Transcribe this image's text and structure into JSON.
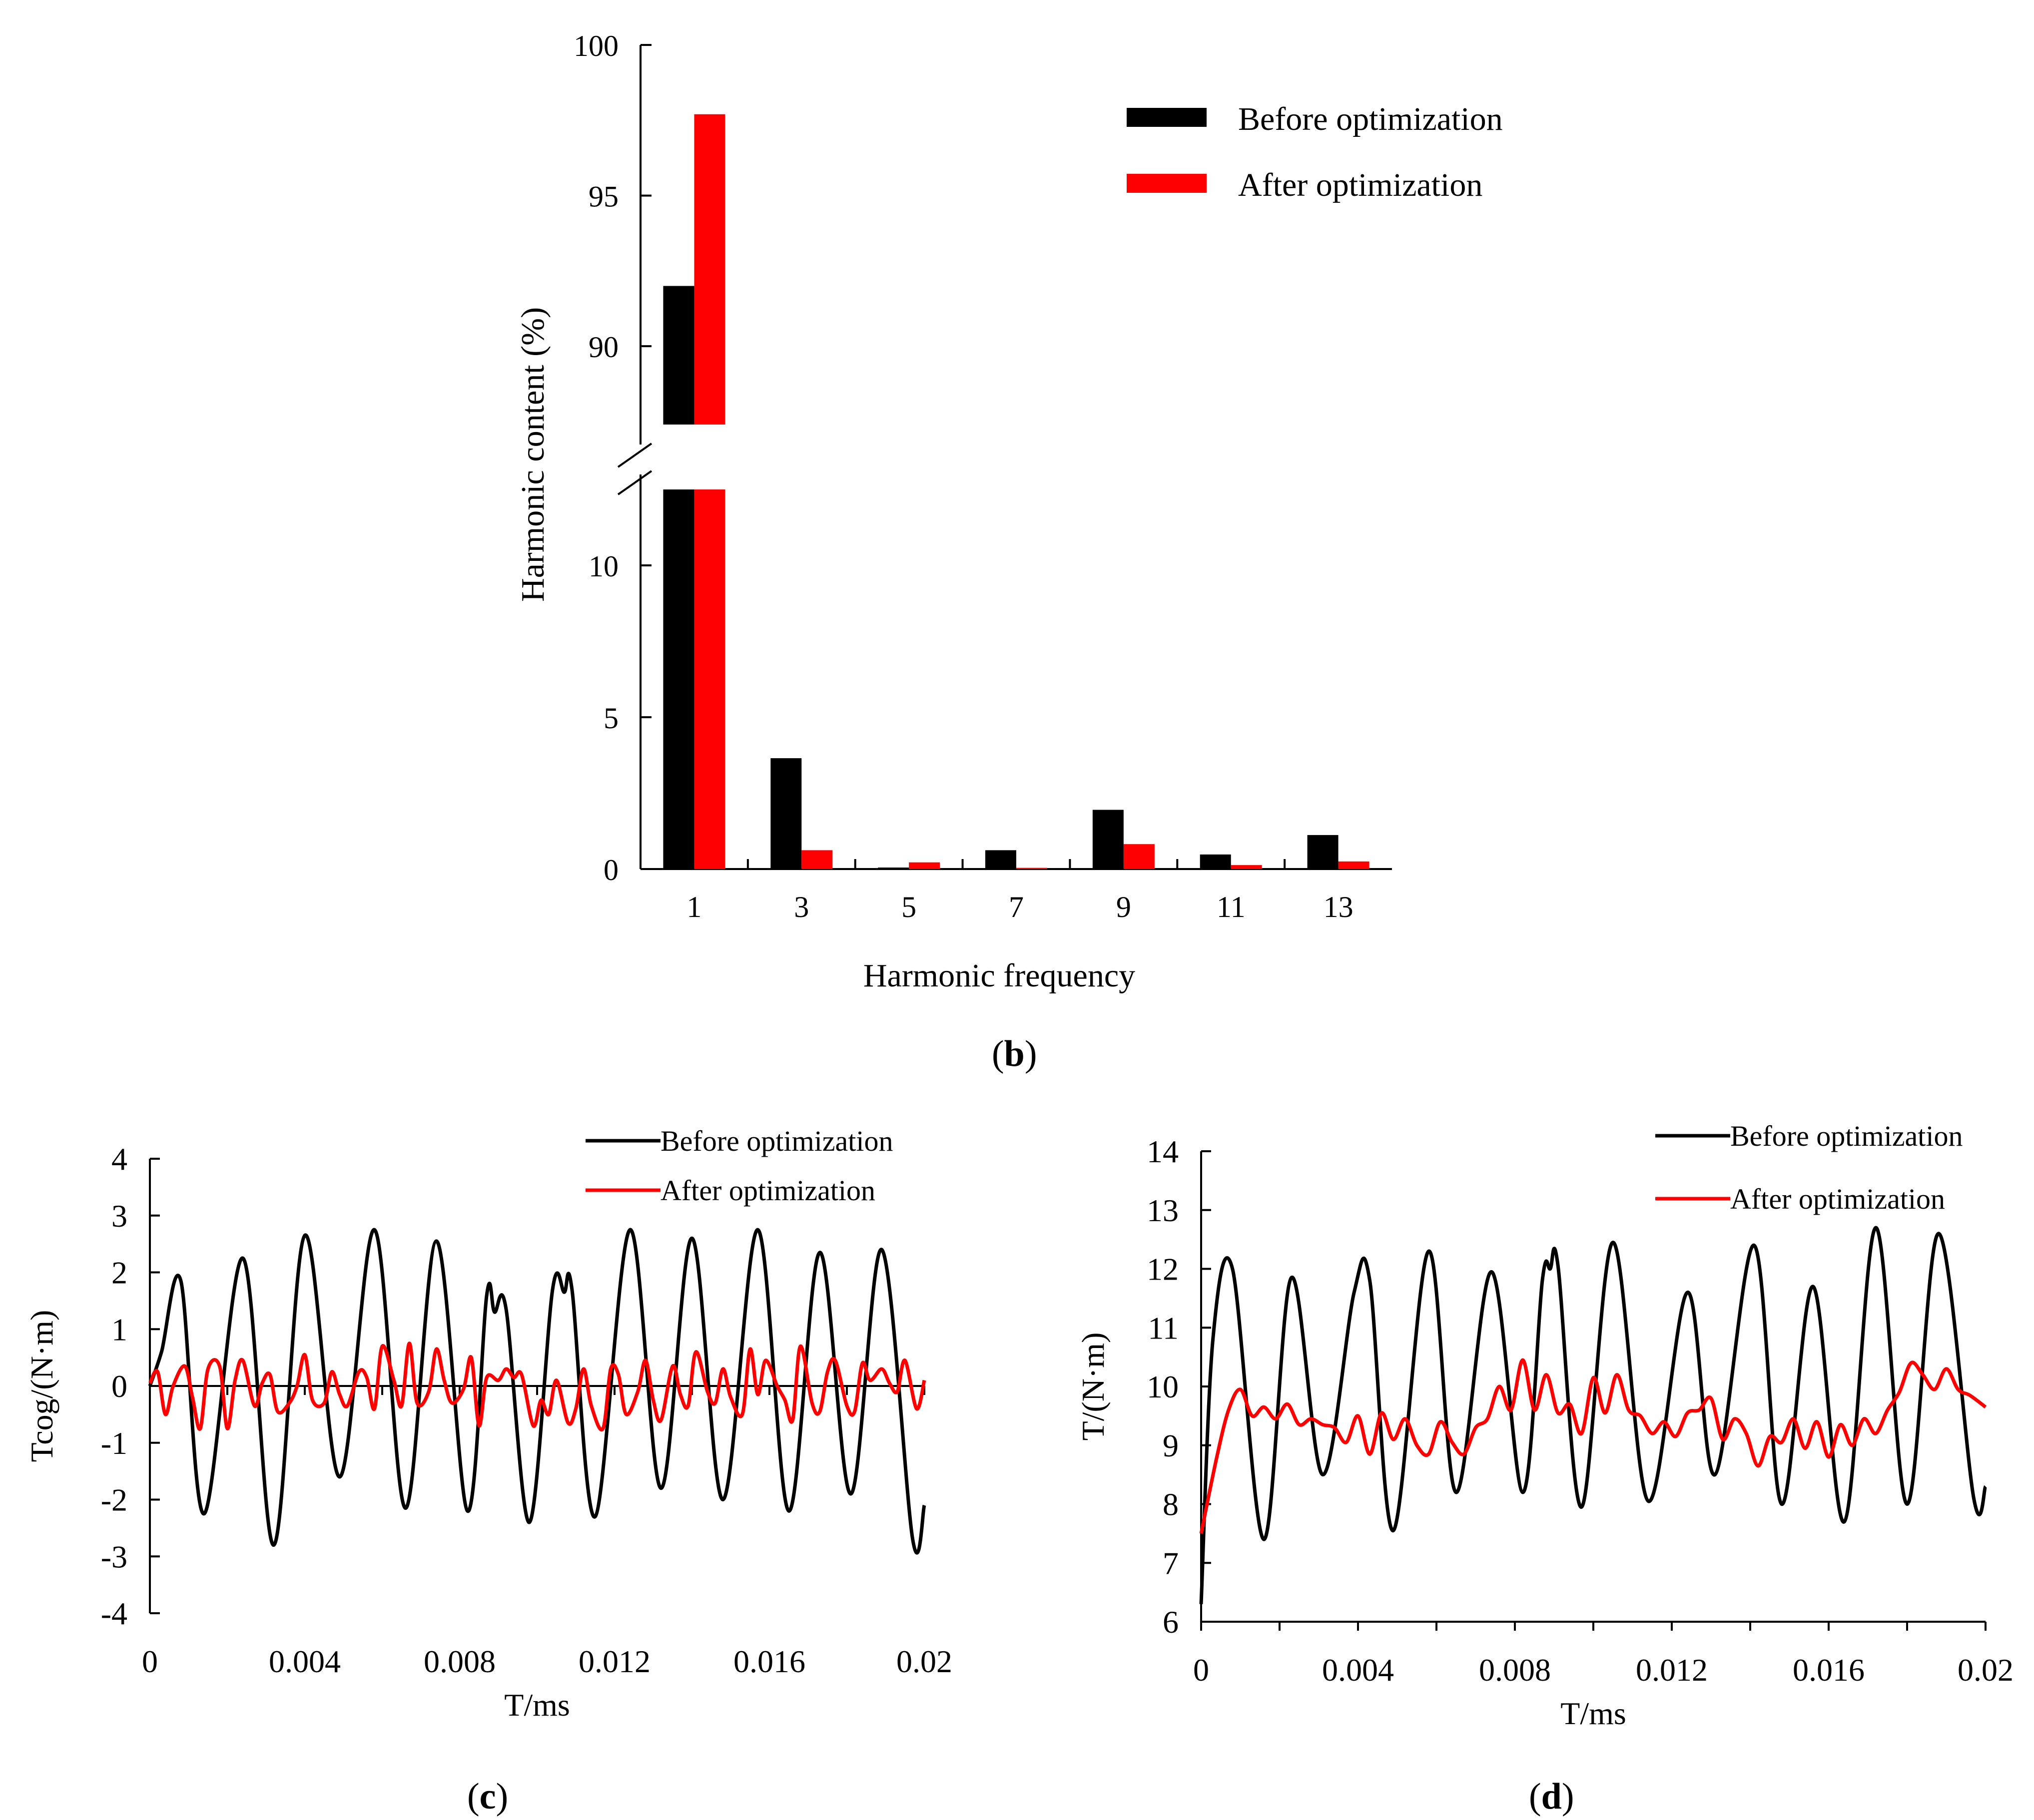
{
  "colors": {
    "before": "#000000",
    "after": "#ff0000"
  },
  "chart_data": [
    {
      "id": "b",
      "type": "bar",
      "caption_letter": "b",
      "xlabel": "Harmonic frequency",
      "ylabel": "Harmonic content (%)",
      "categories": [
        "1",
        "3",
        "5",
        "7",
        "9",
        "11",
        "13"
      ],
      "series": [
        {
          "name": "Before optimization",
          "color": "#000000",
          "values": [
            92.0,
            3.65,
            0.05,
            0.62,
            1.95,
            0.48,
            1.12
          ]
        },
        {
          "name": "After optimization",
          "color": "#ff0000",
          "values": [
            97.7,
            0.62,
            0.22,
            0.04,
            0.82,
            0.13,
            0.25
          ]
        }
      ],
      "axis_break": {
        "lower_range": [
          0,
          12.5
        ],
        "upper_range": [
          87.4,
          100
        ]
      },
      "yticks_lower": [
        0,
        5,
        10
      ],
      "yticks_upper": [
        90,
        95,
        100
      ],
      "legend": {
        "position": "top-right",
        "entries": [
          "Before optimization",
          "After optimization"
        ]
      }
    },
    {
      "id": "c",
      "type": "line",
      "caption_letter": "c",
      "xlabel": "T/ms",
      "ylabel": "Tcog/(N·m)",
      "xlim": [
        0,
        0.02
      ],
      "ylim": [
        -4,
        4
      ],
      "xticks": [
        "0",
        "0.004",
        "0.008",
        "0.012",
        "0.016",
        "0.02"
      ],
      "yticks": [
        "-4",
        "-3",
        "-2",
        "-1",
        "0",
        "1",
        "2",
        "3",
        "4"
      ],
      "legend": {
        "position": "top-right",
        "entries": [
          "Before optimization",
          "After optimization"
        ]
      },
      "series": [
        {
          "name": "Before optimization",
          "color": "#000000",
          "x": [
            0,
            0.0003,
            0.0008,
            0.0014,
            0.0024,
            0.0032,
            0.004,
            0.0049,
            0.0058,
            0.0066,
            0.0074,
            0.0082,
            0.0087,
            0.0089,
            0.0092,
            0.0098,
            0.0104,
            0.0107,
            0.0109,
            0.0115,
            0.0124,
            0.0132,
            0.014,
            0.0148,
            0.0157,
            0.0165,
            0.0173,
            0.0181,
            0.0189,
            0.0197,
            0.02
          ],
          "y": [
            0.0,
            0.6,
            1.85,
            -2.25,
            2.25,
            -2.8,
            2.65,
            -1.6,
            2.75,
            -2.15,
            2.55,
            -2.2,
            1.6,
            1.3,
            1.35,
            -2.4,
            1.7,
            1.65,
            1.7,
            -2.3,
            2.75,
            -1.8,
            2.6,
            -2.0,
            2.75,
            -2.2,
            2.35,
            -1.9,
            2.4,
            -2.7,
            -2.1
          ]
        },
        {
          "name": "After optimization",
          "color": "#ff0000",
          "x": [
            0,
            0.0002,
            0.0004,
            0.0006,
            0.0009,
            0.0011,
            0.0013,
            0.0015,
            0.0018,
            0.002,
            0.0022,
            0.0024,
            0.0027,
            0.0029,
            0.0031,
            0.0033,
            0.0036,
            0.0038,
            0.004,
            0.0042,
            0.0045,
            0.0047,
            0.0049,
            0.0051,
            0.0054,
            0.0056,
            0.0058,
            0.006,
            0.0063,
            0.0065,
            0.0067,
            0.0069,
            0.0072,
            0.0074,
            0.0076,
            0.0078,
            0.0081,
            0.0083,
            0.0085,
            0.0087,
            0.009,
            0.0092,
            0.0094,
            0.0096,
            0.0099,
            0.0101,
            0.0103,
            0.0105,
            0.0108,
            0.011,
            0.0112,
            0.0114,
            0.0117,
            0.0119,
            0.0121,
            0.0123,
            0.0126,
            0.0128,
            0.013,
            0.0132,
            0.0135,
            0.0137,
            0.0139,
            0.0141,
            0.0144,
            0.0146,
            0.0148,
            0.015,
            0.0153,
            0.0155,
            0.0157,
            0.0159,
            0.0162,
            0.0164,
            0.0166,
            0.0168,
            0.0171,
            0.0173,
            0.0175,
            0.0177,
            0.018,
            0.0182,
            0.0184,
            0.0186,
            0.0189,
            0.0191,
            0.0193,
            0.0195,
            0.0198,
            0.02
          ],
          "y": [
            0.05,
            0.25,
            -0.5,
            0.0,
            0.35,
            -0.2,
            -0.75,
            0.3,
            0.35,
            -0.75,
            0.1,
            0.45,
            -0.35,
            0.05,
            0.2,
            -0.45,
            -0.3,
            0.0,
            0.55,
            -0.25,
            -0.3,
            0.25,
            -0.15,
            -0.35,
            0.25,
            0.15,
            -0.4,
            0.7,
            0.1,
            -0.35,
            0.75,
            -0.3,
            -0.1,
            0.65,
            0.1,
            -0.3,
            -0.05,
            0.5,
            -0.7,
            0.15,
            0.1,
            0.3,
            0.15,
            0.2,
            -0.7,
            -0.25,
            -0.5,
            0.1,
            -0.65,
            -0.4,
            0.3,
            -0.35,
            -0.75,
            0.3,
            0.2,
            -0.5,
            -0.1,
            0.45,
            -0.25,
            -0.6,
            0.35,
            -0.15,
            -0.35,
            0.6,
            -0.1,
            -0.3,
            0.3,
            -0.2,
            -0.5,
            0.65,
            -0.15,
            0.45,
            0.0,
            -0.25,
            -0.6,
            0.7,
            -0.3,
            -0.45,
            0.25,
            0.45,
            -0.35,
            -0.45,
            0.4,
            0.1,
            0.3,
            0.05,
            -0.1,
            0.45,
            -0.4,
            0.1
          ]
        }
      ]
    },
    {
      "id": "d",
      "type": "line",
      "caption_letter": "d",
      "xlabel": "T/ms",
      "ylabel": "T/(N·m)",
      "xlim": [
        0,
        0.02
      ],
      "ylim": [
        6,
        14
      ],
      "xticks": [
        "0",
        "0.004",
        "0.008",
        "0.012",
        "0.016",
        "0.02"
      ],
      "yticks": [
        "6",
        "7",
        "8",
        "9",
        "10",
        "11",
        "12",
        "13",
        "14"
      ],
      "legend": {
        "position": "top-right",
        "entries": [
          "Before optimization",
          "After optimization"
        ]
      },
      "series": [
        {
          "name": "Before optimization",
          "color": "#000000",
          "x": [
            0,
            0.0003,
            0.0008,
            0.0016,
            0.0023,
            0.0031,
            0.0039,
            0.0043,
            0.0049,
            0.0058,
            0.0065,
            0.0074,
            0.0082,
            0.0087,
            0.0089,
            0.0091,
            0.0097,
            0.0105,
            0.0114,
            0.0124,
            0.0131,
            0.0141,
            0.0148,
            0.0156,
            0.0164,
            0.0172,
            0.018,
            0.0188,
            0.0197,
            0.02
          ],
          "y": [
            6.3,
            10.8,
            12.0,
            7.4,
            11.85,
            8.5,
            11.6,
            11.8,
            7.55,
            12.3,
            8.2,
            11.95,
            8.2,
            11.8,
            12.0,
            12.05,
            7.95,
            12.45,
            8.05,
            11.6,
            8.5,
            12.4,
            8.0,
            11.7,
            7.7,
            12.7,
            8.0,
            12.6,
            8.1,
            8.3
          ]
        },
        {
          "name": "After optimization",
          "color": "#ff0000",
          "x": [
            0,
            0.0004,
            0.0007,
            0.001,
            0.0013,
            0.0016,
            0.0019,
            0.0022,
            0.0025,
            0.0028,
            0.0031,
            0.0034,
            0.0037,
            0.004,
            0.0043,
            0.0046,
            0.0049,
            0.0052,
            0.0055,
            0.0058,
            0.0061,
            0.0064,
            0.0067,
            0.007,
            0.0073,
            0.0076,
            0.0079,
            0.0082,
            0.0085,
            0.0088,
            0.0091,
            0.0094,
            0.0097,
            0.01,
            0.0103,
            0.0106,
            0.0109,
            0.0112,
            0.0115,
            0.0118,
            0.0121,
            0.0124,
            0.0127,
            0.013,
            0.0133,
            0.0136,
            0.0139,
            0.0142,
            0.0145,
            0.0148,
            0.0151,
            0.0154,
            0.0157,
            0.016,
            0.0163,
            0.0166,
            0.0169,
            0.0172,
            0.0175,
            0.0178,
            0.0181,
            0.0184,
            0.0187,
            0.019,
            0.0193,
            0.0196,
            0.02
          ],
          "y": [
            7.5,
            8.8,
            9.6,
            9.95,
            9.5,
            9.65,
            9.45,
            9.7,
            9.35,
            9.45,
            9.35,
            9.3,
            9.05,
            9.5,
            8.85,
            9.55,
            9.1,
            9.45,
            9.0,
            8.85,
            9.4,
            9.05,
            8.85,
            9.3,
            9.45,
            10.0,
            9.6,
            10.45,
            9.6,
            10.2,
            9.55,
            9.7,
            9.2,
            10.15,
            9.55,
            10.2,
            9.6,
            9.5,
            9.2,
            9.4,
            9.15,
            9.55,
            9.6,
            9.8,
            9.1,
            9.45,
            9.2,
            8.65,
            9.15,
            9.05,
            9.45,
            8.95,
            9.4,
            8.8,
            9.35,
            9.0,
            9.45,
            9.2,
            9.6,
            9.9,
            10.4,
            10.2,
            9.95,
            10.3,
            9.95,
            9.85,
            9.65
          ]
        }
      ]
    }
  ]
}
